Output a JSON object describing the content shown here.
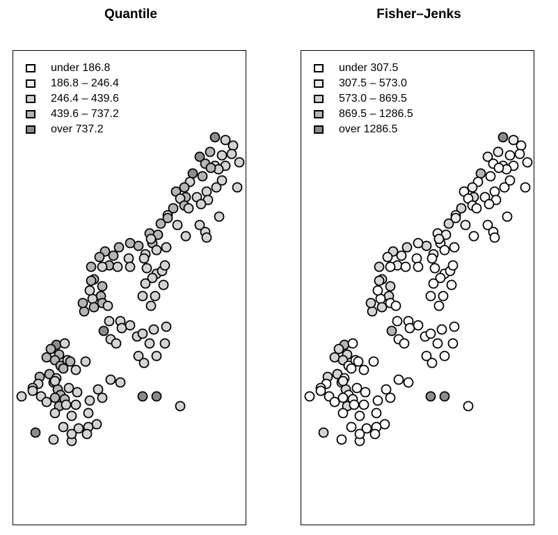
{
  "colors": {
    "class1": "#ffffff",
    "class2": "#ebebeb",
    "class3": "#d4d4d4",
    "class4": "#b5b5b5",
    "class5": "#8c8c8c",
    "outline": "#000000"
  },
  "panels": [
    {
      "title": "Quantile",
      "legend": [
        {
          "label": "under 186.8",
          "class": 1
        },
        {
          "label": "186.8 – 246.4",
          "class": 2
        },
        {
          "label": "246.4 – 439.6",
          "class": 3
        },
        {
          "label": "439.6 – 737.2",
          "class": 4
        },
        {
          "label": "over 737.2",
          "class": 5
        }
      ]
    },
    {
      "title": "Fisher–Jenks",
      "legend": [
        {
          "label": "under 307.5",
          "class": 1
        },
        {
          "label": "307.5 – 573.0",
          "class": 2
        },
        {
          "label": "573.0 – 869.5",
          "class": 3
        },
        {
          "label": "869.5 – 1286.5",
          "class": 4
        },
        {
          "label": "over 1286.5",
          "class": 5
        }
      ]
    }
  ]
}
